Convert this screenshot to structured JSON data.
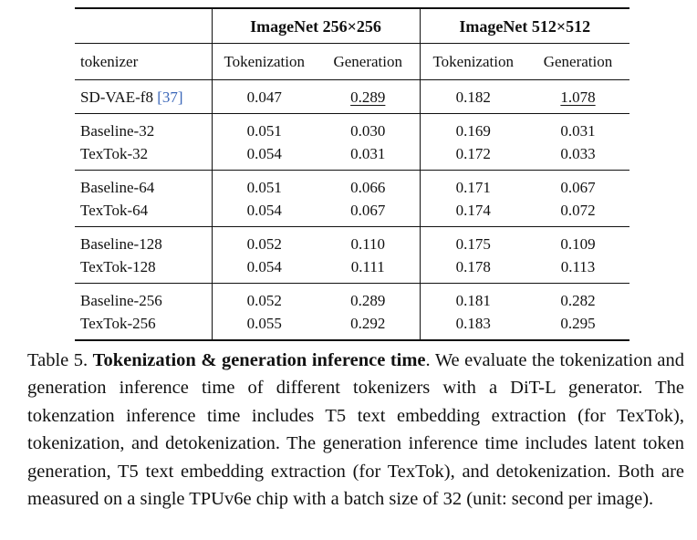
{
  "table": {
    "group_headers": [
      "ImageNet 256×256",
      "ImageNet 512×512"
    ],
    "columns": [
      "tokenizer",
      "Tokenization",
      "Generation",
      "Tokenization",
      "Generation"
    ],
    "first_row": {
      "name": "SD-VAE-f8",
      "ref": "[37]",
      "values": [
        "0.047",
        "0.289",
        "0.182",
        "1.078"
      ],
      "underlined": [
        false,
        true,
        false,
        true
      ]
    },
    "groups": [
      {
        "rows": [
          {
            "name": "Baseline-32",
            "values": [
              "0.051",
              "0.030",
              "0.169",
              "0.031"
            ]
          },
          {
            "name": "TexTok-32",
            "values": [
              "0.054",
              "0.031",
              "0.172",
              "0.033"
            ]
          }
        ]
      },
      {
        "rows": [
          {
            "name": "Baseline-64",
            "values": [
              "0.051",
              "0.066",
              "0.171",
              "0.067"
            ]
          },
          {
            "name": "TexTok-64",
            "values": [
              "0.054",
              "0.067",
              "0.174",
              "0.072"
            ]
          }
        ]
      },
      {
        "rows": [
          {
            "name": "Baseline-128",
            "values": [
              "0.052",
              "0.110",
              "0.175",
              "0.109"
            ]
          },
          {
            "name": "TexTok-128",
            "values": [
              "0.054",
              "0.111",
              "0.178",
              "0.113"
            ]
          }
        ]
      },
      {
        "rows": [
          {
            "name": "Baseline-256",
            "values": [
              "0.052",
              "0.289",
              "0.181",
              "0.282"
            ]
          },
          {
            "name": "TexTok-256",
            "values": [
              "0.055",
              "0.292",
              "0.183",
              "0.295"
            ]
          }
        ]
      }
    ]
  },
  "caption": {
    "label": "Table 5.",
    "bold_title": "Tokenization & generation inference time",
    "text": ". We evaluate the tokenization and generation inference time of different tokenizers with a DiT-L generator. The tokenzation inference time includes T5 text embedding extraction (for TexTok), tokenization, and detokenization. The generation inference time includes latent token generation, T5 text embedding extraction (for TexTok), and detokenization. Both are measured on a single TPUv6e chip with a batch size of 32 (unit: second per image)."
  }
}
